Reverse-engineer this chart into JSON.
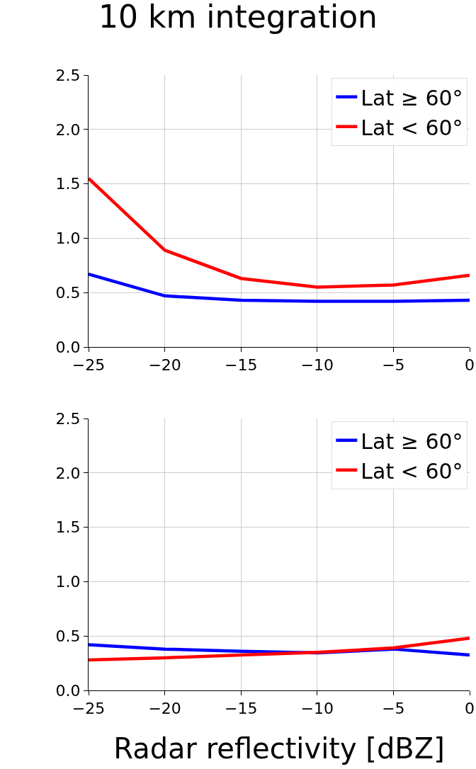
{
  "chart_data": [
    {
      "type": "line",
      "title": "10 km integration",
      "x": [
        -25,
        -20,
        -15,
        -10,
        -5,
        0
      ],
      "series": [
        {
          "name": "Lat ≥ 60°",
          "color": "#0000ff",
          "values": [
            0.67,
            0.47,
            0.43,
            0.42,
            0.42,
            0.43
          ]
        },
        {
          "name": "Lat < 60°",
          "color": "#ff0000",
          "values": [
            1.55,
            0.89,
            0.63,
            0.55,
            0.57,
            0.66
          ]
        }
      ],
      "xlim": [
        -25,
        0
      ],
      "xticks": [
        {
          "value": -25,
          "label": "−25"
        },
        {
          "value": -20,
          "label": "−20"
        },
        {
          "value": -15,
          "label": "−15"
        },
        {
          "value": -10,
          "label": "−10"
        },
        {
          "value": -5,
          "label": "−5"
        },
        0
      ],
      "ylim": [
        0,
        2.5
      ],
      "yticks": [
        {
          "value": 0,
          "label": "0.0"
        },
        {
          "value": 0.5,
          "label": "0.5"
        },
        {
          "value": 1,
          "label": "1.0"
        },
        {
          "value": 1.5,
          "label": "1.5"
        },
        {
          "value": 2,
          "label": "2.0"
        },
        {
          "value": 2.5,
          "label": "2.5"
        }
      ],
      "grid": true,
      "legend": "top right",
      "marker": "none",
      "line_style": "solid"
    },
    {
      "type": "line",
      "xlabel": "Radar reflectivity [dBZ]",
      "x": [
        -25,
        -20,
        -15,
        -10,
        -5,
        0
      ],
      "series": [
        {
          "name": "Lat ≥ 60°",
          "color": "#0000ff",
          "values": [
            0.42,
            0.38,
            0.36,
            0.345,
            0.38,
            0.325
          ]
        },
        {
          "name": "Lat < 60°",
          "color": "#ff0000",
          "values": [
            0.28,
            0.3,
            0.325,
            0.35,
            0.39,
            0.48
          ]
        }
      ],
      "xlim": [
        -25,
        0
      ],
      "xticks": [
        {
          "value": -25,
          "label": "−25"
        },
        {
          "value": -20,
          "label": "−20"
        },
        {
          "value": -15,
          "label": "−15"
        },
        {
          "value": -10,
          "label": "−10"
        },
        {
          "value": -5,
          "label": "−5"
        },
        0
      ],
      "ylim": [
        0,
        2.5
      ],
      "yticks": [
        {
          "value": 0,
          "label": "0.0"
        },
        {
          "value": 0.5,
          "label": "0.5"
        },
        {
          "value": 1,
          "label": "1.0"
        },
        {
          "value": 1.5,
          "label": "1.5"
        },
        {
          "value": 2,
          "label": "2.0"
        },
        {
          "value": 2.5,
          "label": "2.5"
        }
      ],
      "grid": true,
      "legend": "top right",
      "marker": "none",
      "line_style": "solid"
    }
  ]
}
